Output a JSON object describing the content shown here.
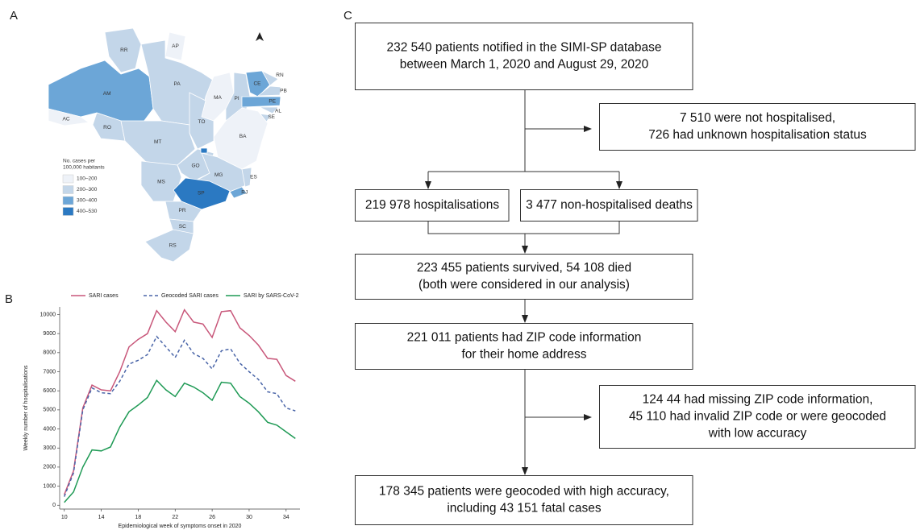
{
  "panels": [
    "A",
    "B",
    "C"
  ],
  "map": {
    "legend_title": [
      "No. cases per",
      "100,000 habitants"
    ],
    "classes": [
      {
        "label": "100–200",
        "color": "#eef2f8"
      },
      {
        "label": "200–300",
        "color": "#c3d6e9"
      },
      {
        "label": "300–400",
        "color": "#6ca6d7"
      },
      {
        "label": "400–530",
        "color": "#2b79c2"
      }
    ],
    "states": [
      {
        "label": "RR",
        "class": 1
      },
      {
        "label": "AP",
        "class": 0
      },
      {
        "label": "AM",
        "class": 2
      },
      {
        "label": "AC",
        "class": 0
      },
      {
        "label": "PA",
        "class": 1
      },
      {
        "label": "MA",
        "class": 0
      },
      {
        "label": "PI",
        "class": 1
      },
      {
        "label": "CE",
        "class": 2
      },
      {
        "label": "RN",
        "class": 1
      },
      {
        "label": "PB",
        "class": 1
      },
      {
        "label": "PE",
        "class": 2
      },
      {
        "label": "AL",
        "class": 1
      },
      {
        "label": "SE",
        "class": 1
      },
      {
        "label": "BA",
        "class": 0
      },
      {
        "label": "TO",
        "class": 1
      },
      {
        "label": "RO",
        "class": 1
      },
      {
        "label": "MT",
        "class": 1
      },
      {
        "label": "GO",
        "class": 1
      },
      {
        "label": null,
        "class": 3
      },
      {
        "label": "MS",
        "class": 1
      },
      {
        "label": "MG",
        "class": 1
      },
      {
        "label": "ES",
        "class": 1
      },
      {
        "label": "RJ",
        "class": 2
      },
      {
        "label": "SP",
        "class": 3
      },
      {
        "label": "PR",
        "class": 1
      },
      {
        "label": "SC",
        "class": 1
      },
      {
        "label": "RS",
        "class": 1
      }
    ]
  },
  "chart_data": {
    "type": "line",
    "x_label": "Epidemiological week of symptoms onset in 2020",
    "y_label": "Weekly number of hospitalisations",
    "x": [
      10,
      11,
      12,
      13,
      14,
      15,
      16,
      17,
      18,
      19,
      20,
      21,
      22,
      23,
      24,
      25,
      26,
      27,
      28,
      29,
      30,
      31,
      32,
      33,
      34,
      35
    ],
    "xlim": [
      9.5,
      35.5
    ],
    "xticks": [
      10,
      14,
      18,
      22,
      26,
      30,
      34
    ],
    "ylim": [
      -200,
      10400
    ],
    "yticks": [
      0,
      1000,
      2000,
      3000,
      4000,
      5000,
      6000,
      7000,
      8000,
      9000,
      10000
    ],
    "series": [
      {
        "name": "SARI cases",
        "color": "#c8577a",
        "dashed": false,
        "values": [
          550,
          1800,
          5100,
          6300,
          6050,
          6000,
          7000,
          8300,
          8700,
          9000,
          10200,
          9600,
          9100,
          10250,
          9600,
          9500,
          8800,
          10150,
          10200,
          9300,
          8900,
          8400,
          7700,
          7650,
          6800,
          6500
        ]
      },
      {
        "name": "Geocoded SARI cases",
        "color": "#4a65a8",
        "dashed": true,
        "values": [
          450,
          1700,
          5000,
          6150,
          5900,
          5850,
          6500,
          7400,
          7600,
          7900,
          8850,
          8300,
          7750,
          8650,
          7950,
          7700,
          7150,
          8100,
          8200,
          7450,
          7000,
          6600,
          5950,
          5850,
          5100,
          4950
        ]
      },
      {
        "name": "SARI by SARS-CoV-2",
        "color": "#1f9a55",
        "dashed": false,
        "values": [
          150,
          700,
          2000,
          2900,
          2850,
          3050,
          4100,
          4900,
          5250,
          5650,
          6550,
          6050,
          5700,
          6400,
          6200,
          5900,
          5500,
          6450,
          6400,
          5700,
          5350,
          4900,
          4350,
          4200,
          3850,
          3500
        ]
      }
    ]
  },
  "flowchart": {
    "nodes": [
      {
        "lines": [
          "232 540 patients notified in the SIMI-SP database",
          "between March 1, 2020 and August 29, 2020"
        ]
      },
      {
        "lines": [
          "7 510 were not hospitalised,",
          "726 had unknown hospitalisation status"
        ]
      },
      {
        "lines": [
          "219 978 hospitalisations"
        ]
      },
      {
        "lines": [
          "3 477 non-hospitalised deaths"
        ]
      },
      {
        "lines": [
          "223 455 patients survived, 54 108 died",
          "(both were considered in our analysis)"
        ]
      },
      {
        "lines": [
          "221 011 patients had ZIP code information",
          "for their home address"
        ]
      },
      {
        "lines": [
          "124 44 had missing ZIP code information,",
          "45 110 had invalid ZIP code or were geocoded",
          "with low accuracy"
        ]
      },
      {
        "lines": [
          "178 345 patients were geocoded with high accuracy,",
          "including 43 151 fatal cases"
        ]
      }
    ]
  }
}
